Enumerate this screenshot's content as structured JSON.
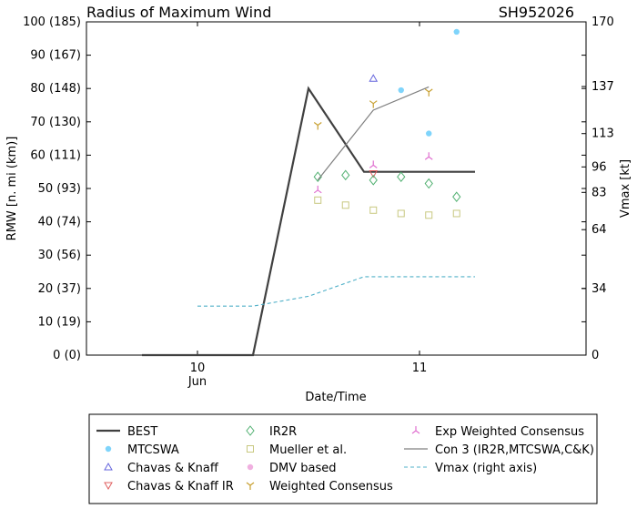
{
  "chart_data": {
    "type": "line",
    "title": "Radius of Maximum Wind",
    "storm_id": "SH952026",
    "xlabel": "Date/Time",
    "ylabel": "RMW [n. mi (km)]",
    "y2label": "Vmax [kt]",
    "x_tick_labels": [
      "10\nJun",
      "11"
    ],
    "x_ticks": [
      10.0,
      11.0
    ],
    "xlim": [
      9.5,
      11.75
    ],
    "ylim": [
      0,
      100
    ],
    "y_ticks": [
      0,
      10,
      20,
      30,
      40,
      50,
      60,
      70,
      80,
      90,
      100
    ],
    "y_tick_labels": [
      "0 (0)",
      "10 (19)",
      "20 (37)",
      "30 (56)",
      "40 (74)",
      "50 (93)",
      "60 (111)",
      "70 (130)",
      "80 (148)",
      "90 (167)",
      "100 (185)"
    ],
    "y2lim": [
      0,
      170
    ],
    "y2_ticks": [
      0,
      34,
      64,
      83,
      96,
      113,
      137,
      170
    ],
    "y2_tick_labels": [
      "0",
      "34",
      "64",
      "83",
      "96",
      "113",
      "137",
      "170"
    ],
    "grid": false,
    "legend_placement": "below",
    "series": [
      {
        "name": "BEST",
        "kind": "line",
        "color": "#404040",
        "x": [
          9.75,
          10.25,
          10.5,
          10.75,
          11.0,
          11.25
        ],
        "y": [
          0,
          0,
          80,
          55,
          55,
          55
        ]
      },
      {
        "name": "MTCSWA",
        "kind": "marker",
        "marker": "circle",
        "color": "#7fd4fb",
        "x": [
          10.917,
          11.042,
          11.167
        ],
        "y": [
          79.5,
          66.5,
          97
        ]
      },
      {
        "name": "Chavas & Knaff",
        "kind": "marker",
        "marker": "triangle-up",
        "color": "#6666dd",
        "x": [
          10.792
        ],
        "y": [
          83
        ]
      },
      {
        "name": "Chavas & Knaff IR",
        "kind": "marker",
        "marker": "triangle-down",
        "color": "#e06060",
        "x": [
          10.792
        ],
        "y": [
          54.5
        ]
      },
      {
        "name": "IR2R",
        "kind": "marker",
        "marker": "diamond",
        "color": "#50b070",
        "x": [
          10.542,
          10.667,
          10.792,
          10.917,
          11.042,
          11.167
        ],
        "y": [
          53.5,
          54,
          52.5,
          53.5,
          51.5,
          47.5
        ]
      },
      {
        "name": "Mueller et al.",
        "kind": "marker",
        "marker": "square",
        "color": "#c8c880",
        "x": [
          10.542,
          10.667,
          10.792,
          10.917,
          11.042,
          11.167
        ],
        "y": [
          46.5,
          45,
          43.5,
          42.5,
          42,
          42.5
        ]
      },
      {
        "name": "DMV based",
        "kind": "marker",
        "marker": "circle",
        "color": "#f0b0e0",
        "x": [],
        "y": []
      },
      {
        "name": "Weighted Consensus",
        "kind": "marker",
        "marker": "tri-down",
        "color": "#c8a030",
        "x": [
          10.542,
          10.792,
          11.042
        ],
        "y": [
          69,
          75.5,
          79
        ]
      },
      {
        "name": "Exp Weighted Consensus",
        "kind": "marker",
        "marker": "tri-up",
        "color": "#e070d0",
        "x": [
          10.542,
          10.792,
          11.042
        ],
        "y": [
          49.5,
          57,
          59.5
        ]
      },
      {
        "name": "Con 3 (IR2R,MTCSWA,C&K)",
        "kind": "line",
        "color": "#808080",
        "x": [
          10.542,
          10.792,
          11.042
        ],
        "y": [
          52.5,
          73.5,
          80.5
        ]
      },
      {
        "name": "Vmax (right axis)",
        "kind": "line",
        "dashed": true,
        "axis": "right",
        "color": "#50b0c8",
        "x": [
          10.0,
          10.25,
          10.5,
          10.75,
          11.0,
          11.25
        ],
        "y": [
          25,
          25,
          30,
          40,
          40,
          40
        ]
      }
    ]
  }
}
